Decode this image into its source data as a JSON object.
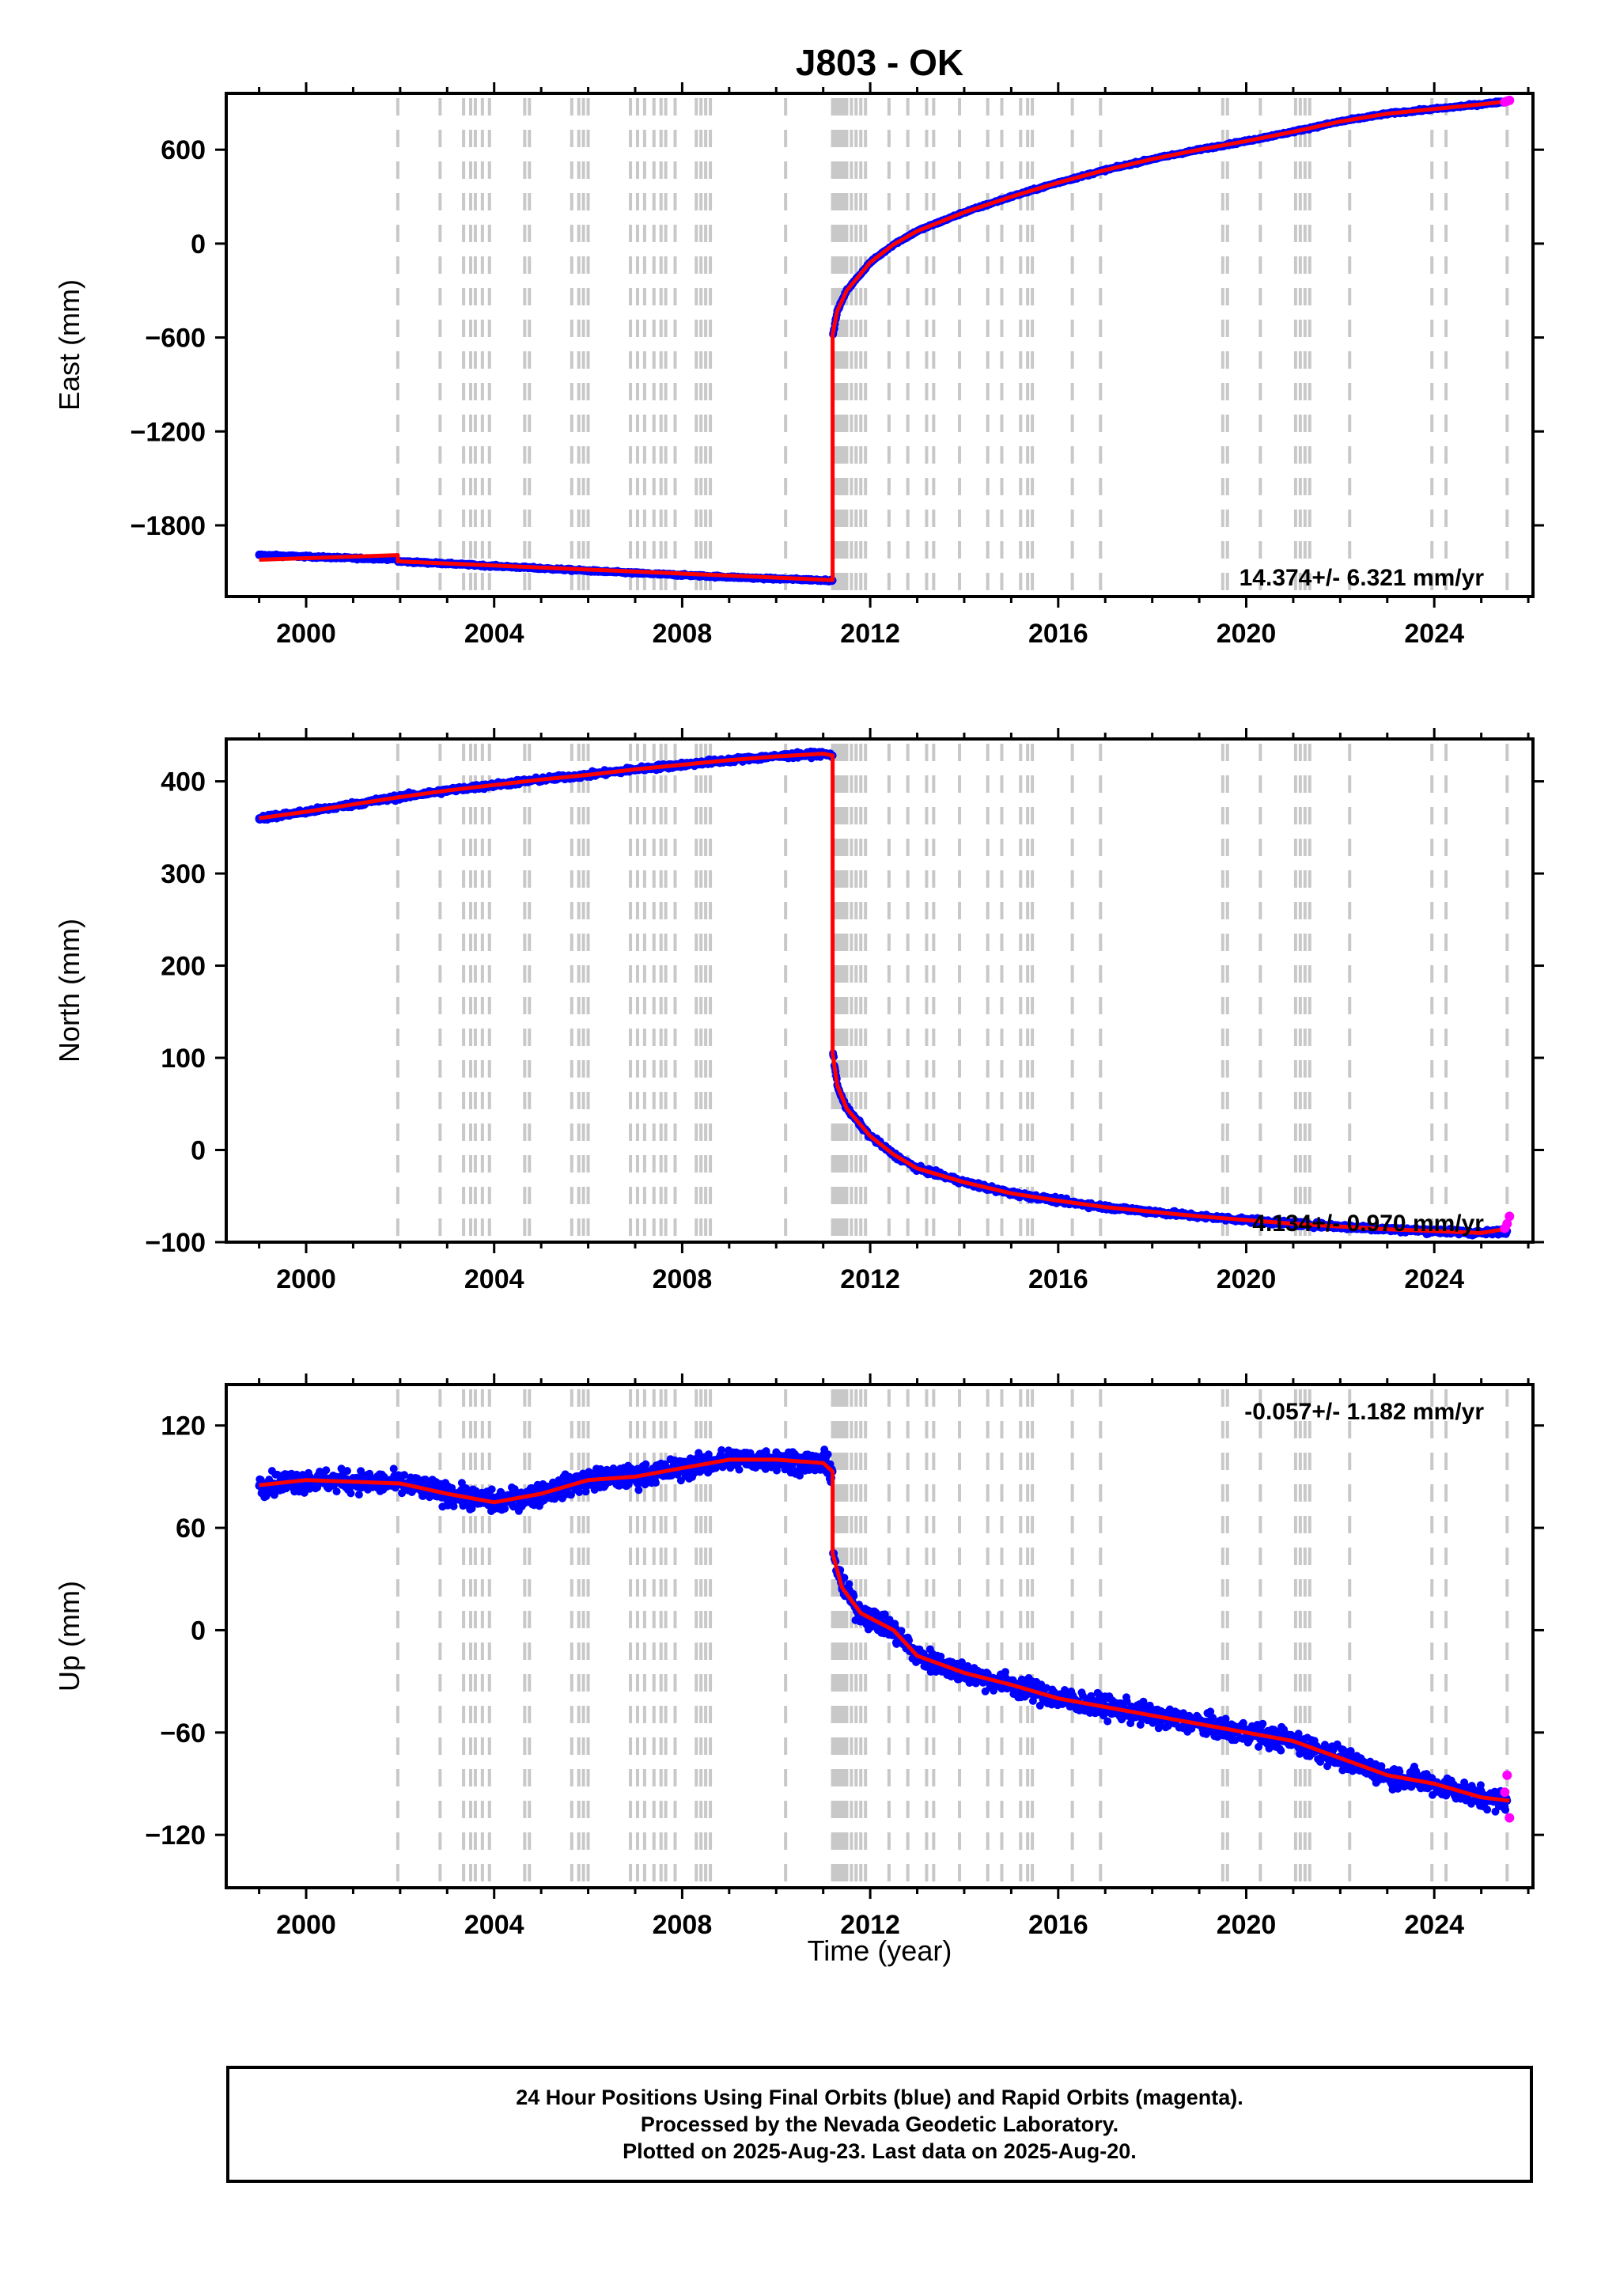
{
  "colors": {
    "final_orbits": "#0000ff",
    "rapid_orbits": "#ff00ff",
    "model": "#ff0000",
    "event_lines": "#c8c8c8"
  },
  "chart_data": [
    {
      "type": "scatter",
      "title": "J803 - OK",
      "ylabel": "East (mm)",
      "xlim": [
        1998.3,
        2026.1
      ],
      "ylim": [
        -2255,
        960
      ],
      "xticks": [
        2000,
        2004,
        2008,
        2012,
        2016,
        2020,
        2024
      ],
      "yticks": [
        600,
        0,
        -600,
        -1200,
        -1800
      ],
      "tick_labels": [
        "600",
        "0",
        "−600",
        "−1200",
        "−1800"
      ],
      "rate_label": "14.374+/- 6.321 mm/yr",
      "rate_position": "bottom-right",
      "noise_mm": 10,
      "series": [
        {
          "name": "Final Orbits",
          "x": [
            1999.0,
            1999.5,
            2000.0,
            2001.0,
            2001.9,
            2001.95,
            2003.0,
            2004.0,
            2005.0,
            2006.0,
            2007.0,
            2008.0,
            2009.0,
            2010.0,
            2011.0,
            2011.2,
            2011.21,
            2011.3,
            2011.5,
            2012.0,
            2012.5,
            2013.0,
            2014.0,
            2015.0,
            2016.0,
            2017.0,
            2018.0,
            2019.0,
            2020.0,
            2021.0,
            2022.0,
            2023.0,
            2024.0,
            2025.0,
            2025.55
          ],
          "y": [
            -1990,
            -1995,
            -2000,
            -2010,
            -2015,
            -2030,
            -2045,
            -2060,
            -2075,
            -2090,
            -2105,
            -2118,
            -2130,
            -2142,
            -2150,
            -2152,
            -580,
            -430,
            -300,
            -120,
            -5,
            80,
            200,
            300,
            390,
            470,
            540,
            600,
            655,
            715,
            780,
            830,
            860,
            890,
            910
          ]
        },
        {
          "name": "Rapid Orbits",
          "x": [
            2025.5,
            2025.55,
            2025.6
          ],
          "y": [
            905,
            910,
            915
          ]
        },
        {
          "name": "Model",
          "x": [
            1999.0,
            2001.95,
            2001.95,
            2011.2,
            2011.2,
            2011.3,
            2011.5,
            2012.0,
            2012.5,
            2013.0,
            2014.0,
            2015.0,
            2016.0,
            2017.0,
            2018.0,
            2019.0,
            2020.0,
            2021.0,
            2022.0,
            2023.0,
            2024.0,
            2025.0,
            2025.6
          ],
          "y": [
            -2020,
            -1990,
            -2030,
            -2150,
            -580,
            -430,
            -300,
            -120,
            -5,
            80,
            200,
            300,
            390,
            470,
            540,
            600,
            655,
            715,
            780,
            830,
            860,
            890,
            910
          ]
        }
      ]
    },
    {
      "type": "scatter",
      "ylabel": "North (mm)",
      "xlim": [
        1998.3,
        2026.1
      ],
      "ylim": [
        -100,
        446
      ],
      "xticks": [
        2000,
        2004,
        2008,
        2012,
        2016,
        2020,
        2024
      ],
      "yticks": [
        400,
        300,
        200,
        100,
        0,
        -100
      ],
      "tick_labels": [
        "400",
        "300",
        "200",
        "100",
        "0",
        "−100"
      ],
      "rate_label": "4.134+/- 0.970 mm/yr",
      "rate_position": "bottom-right",
      "noise_mm": 4,
      "series": [
        {
          "name": "Final Orbits",
          "x": [
            1999.0,
            2000.0,
            2001.0,
            2002.0,
            2003.0,
            2004.0,
            2005.0,
            2006.0,
            2007.0,
            2008.0,
            2009.0,
            2010.0,
            2011.0,
            2011.2,
            2011.21,
            2011.3,
            2011.5,
            2012.0,
            2012.5,
            2013.0,
            2014.0,
            2015.0,
            2016.0,
            2017.0,
            2018.0,
            2019.0,
            2020.0,
            2021.0,
            2022.0,
            2023.0,
            2024.0,
            2025.0,
            2025.55
          ],
          "y": [
            360,
            367,
            375,
            383,
            390,
            396,
            402,
            407,
            413,
            418,
            423,
            427,
            430,
            428,
            105,
            70,
            45,
            15,
            -5,
            -20,
            -35,
            -47,
            -55,
            -62,
            -67,
            -72,
            -76,
            -80,
            -83,
            -86,
            -88,
            -90,
            -88
          ]
        },
        {
          "name": "Rapid Orbits",
          "x": [
            2025.5,
            2025.55,
            2025.6
          ],
          "y": [
            -85,
            -80,
            -72
          ]
        },
        {
          "name": "Model",
          "x": [
            1999.0,
            2000.0,
            2001.0,
            2002.0,
            2003.0,
            2004.0,
            2005.0,
            2006.0,
            2007.0,
            2008.0,
            2009.0,
            2010.0,
            2011.0,
            2011.2,
            2011.2,
            2011.3,
            2011.5,
            2012.0,
            2012.5,
            2013.0,
            2014.0,
            2015.0,
            2016.0,
            2017.0,
            2018.0,
            2019.0,
            2020.0,
            2021.0,
            2022.0,
            2023.0,
            2024.0,
            2025.0,
            2025.6
          ],
          "y": [
            360,
            367,
            375,
            383,
            390,
            396,
            402,
            407,
            413,
            418,
            423,
            427,
            430,
            428,
            105,
            70,
            45,
            15,
            -5,
            -20,
            -35,
            -47,
            -55,
            -62,
            -67,
            -72,
            -76,
            -80,
            -83,
            -86,
            -88,
            -90,
            -85
          ]
        }
      ]
    },
    {
      "type": "scatter",
      "ylabel": "Up (mm)",
      "xlim": [
        1998.3,
        2026.1
      ],
      "ylim": [
        -151,
        144
      ],
      "xticks": [
        2000,
        2004,
        2008,
        2012,
        2016,
        2020,
        2024
      ],
      "yticks": [
        120,
        60,
        0,
        -60,
        -120
      ],
      "tick_labels": [
        "120",
        "60",
        "0",
        "−60",
        "−120"
      ],
      "rate_label": "-0.057+/- 1.182 mm/yr",
      "rate_position": "top-right",
      "noise_mm": 9,
      "xlabel": "Time (year)",
      "series": [
        {
          "name": "Final Orbits",
          "x": [
            1999.0,
            2000.0,
            2001.0,
            2002.0,
            2003.0,
            2004.0,
            2005.0,
            2006.0,
            2007.0,
            2008.0,
            2009.0,
            2010.0,
            2011.0,
            2011.2,
            2011.21,
            2011.4,
            2011.8,
            2012.5,
            2013.0,
            2014.0,
            2015.0,
            2016.0,
            2017.0,
            2018.0,
            2019.0,
            2020.0,
            2021.0,
            2022.0,
            2023.0,
            2024.0,
            2025.0,
            2025.55
          ],
          "y": [
            85,
            88,
            87,
            86,
            80,
            75,
            80,
            88,
            90,
            95,
            100,
            100,
            98,
            93,
            45,
            25,
            10,
            0,
            -15,
            -25,
            -32,
            -40,
            -45,
            -50,
            -55,
            -60,
            -65,
            -75,
            -85,
            -90,
            -98,
            -100
          ]
        },
        {
          "name": "Rapid Orbits",
          "x": [
            2025.5,
            2025.55,
            2025.6
          ],
          "y": [
            -95,
            -85,
            -110
          ]
        },
        {
          "name": "Model",
          "x": [
            1999.0,
            2000.0,
            2001.0,
            2002.0,
            2003.0,
            2004.0,
            2005.0,
            2006.0,
            2007.0,
            2008.0,
            2009.0,
            2010.0,
            2011.0,
            2011.2,
            2011.2,
            2011.4,
            2011.8,
            2012.5,
            2013.0,
            2014.0,
            2015.0,
            2016.0,
            2017.0,
            2018.0,
            2019.0,
            2020.0,
            2021.0,
            2022.0,
            2023.0,
            2024.0,
            2025.0,
            2025.6
          ],
          "y": [
            85,
            88,
            87,
            86,
            80,
            75,
            80,
            88,
            90,
            95,
            100,
            100,
            98,
            93,
            45,
            25,
            10,
            0,
            -15,
            -25,
            -32,
            -40,
            -45,
            -50,
            -55,
            -60,
            -65,
            -75,
            -85,
            -90,
            -98,
            -100
          ]
        }
      ]
    }
  ],
  "event_lines_x": [
    2001.95,
    2002.85,
    2003.35,
    2003.5,
    2003.6,
    2003.75,
    2003.9,
    2004.65,
    2004.75,
    2005.65,
    2005.8,
    2005.9,
    2006.0,
    2006.9,
    2007.05,
    2007.2,
    2007.4,
    2007.55,
    2007.65,
    2007.85,
    2008.3,
    2008.4,
    2008.5,
    2008.6,
    2010.2,
    2011.2,
    2011.25,
    2011.3,
    2011.35,
    2011.4,
    2011.45,
    2011.5,
    2011.6,
    2011.7,
    2011.8,
    2011.9,
    2012.4,
    2012.8,
    2013.2,
    2013.35,
    2013.9,
    2014.5,
    2014.8,
    2015.2,
    2015.35,
    2015.45,
    2016.3,
    2016.9,
    2019.5,
    2019.6,
    2020.3,
    2021.05,
    2021.15,
    2021.25,
    2021.35,
    2022.2,
    2023.95,
    2024.25,
    2025.55
  ],
  "footer": {
    "line1": "24 Hour Positions Using Final Orbits (blue) and Rapid Orbits (magenta).",
    "line2": "Processed by the Nevada Geodetic Laboratory.",
    "line3": "Plotted on 2025-Aug-23. Last data on 2025-Aug-20."
  }
}
